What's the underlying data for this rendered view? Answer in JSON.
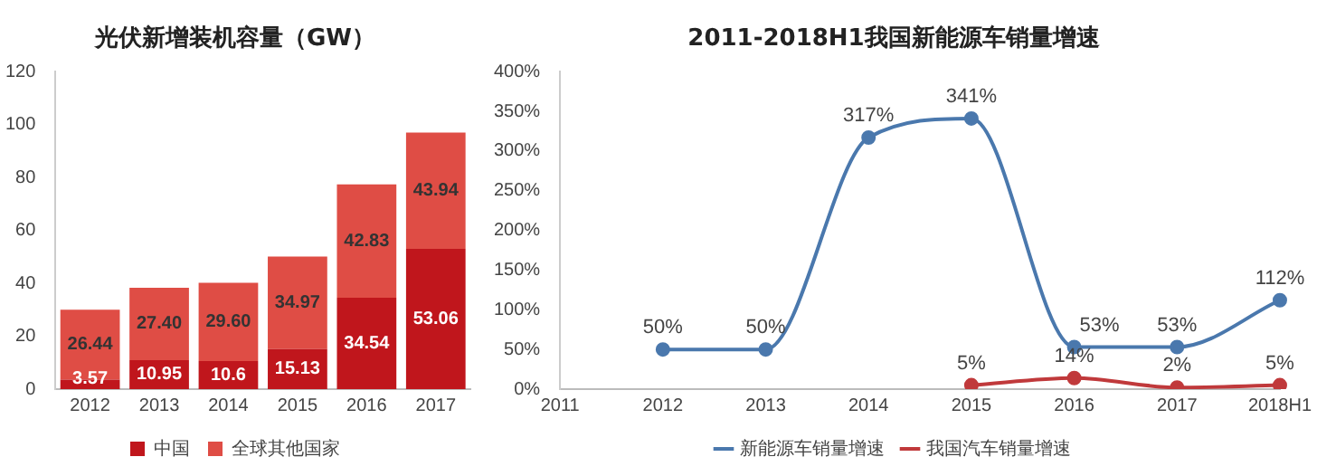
{
  "chart_data": [
    {
      "type": "bar",
      "title": "光伏新增装机容量（GW）",
      "categories": [
        "2012",
        "2013",
        "2014",
        "2015",
        "2016",
        "2017"
      ],
      "stacked": true,
      "ylim": [
        0,
        120
      ],
      "yticks": [
        0,
        20,
        40,
        60,
        80,
        100,
        120
      ],
      "grid": false,
      "legend": "bottom",
      "series": [
        {
          "name": "中国",
          "color": "#c0161c",
          "values": [
            3.57,
            10.95,
            10.6,
            15.13,
            34.54,
            53.06
          ],
          "value_labels": [
            "3.57",
            "10.95",
            "10.6",
            "15.13",
            "34.54",
            "53.06"
          ]
        },
        {
          "name": "全球其他国家",
          "color": "#df4d45",
          "values": [
            26.44,
            27.4,
            29.6,
            34.97,
            42.83,
            43.94
          ],
          "value_labels": [
            "26.44",
            "27.40",
            "29.60",
            "34.97",
            "42.83",
            "43.94"
          ]
        }
      ]
    },
    {
      "type": "line",
      "title": "2011-2018H1我国新能源车销量增速",
      "categories": [
        "2011",
        "2012",
        "2013",
        "2014",
        "2015",
        "2016",
        "2017",
        "2018H1"
      ],
      "ylim": [
        0,
        400
      ],
      "yticks": [
        {
          "value": 0,
          "label": "0%"
        },
        {
          "value": 50,
          "label": "50%"
        },
        {
          "value": 100,
          "label": "100%"
        },
        {
          "value": 150,
          "label": "150%"
        },
        {
          "value": 200,
          "label": "200%"
        },
        {
          "value": 250,
          "label": "250%"
        },
        {
          "value": 300,
          "label": "300%"
        },
        {
          "value": 350,
          "label": "350%"
        },
        {
          "value": 400,
          "label": "400%"
        }
      ],
      "grid": false,
      "legend": "bottom",
      "marker": "circle",
      "line_style": "solid",
      "series": [
        {
          "name": "新能源车销量增速",
          "color": "#4a78ad",
          "values": [
            null,
            50,
            50,
            317,
            341,
            53,
            53,
            112
          ],
          "value_labels": [
            null,
            "50%",
            "50%",
            "317%",
            "341%",
            "53%",
            "53%",
            "112%"
          ]
        },
        {
          "name": "我国汽车销量增速",
          "color": "#c0393b",
          "values": [
            null,
            null,
            null,
            null,
            5,
            14,
            2,
            5
          ],
          "value_labels": [
            null,
            null,
            null,
            null,
            "5%",
            "14%",
            "2%",
            "5%"
          ]
        }
      ]
    }
  ]
}
